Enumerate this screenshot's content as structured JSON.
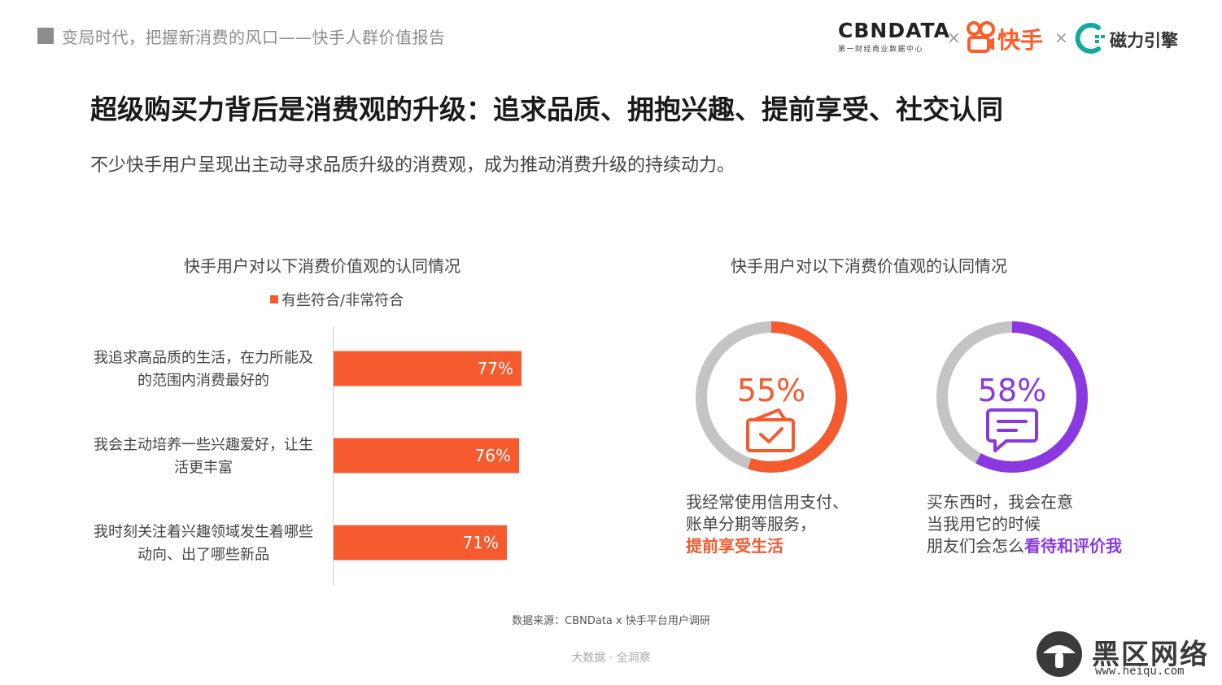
{
  "header": {
    "title": "变局时代，把握新消费的风口——快手人群价值报告",
    "logos": {
      "cbn_main": "CBNDATA",
      "cbn_sub": "第一财经商业数据中心",
      "x_sep": "×",
      "kuaishou": "快手",
      "cili": "磁力引擎"
    }
  },
  "main_title": "超级购买力背后是消费观的升级：追求品质、拥抱兴趣、提前享受、社交认同",
  "subtitle": "不少快手用户呈现出主动寻求品质升级的消费观，成为推动消费升级的持续动力。",
  "chart_data": [
    {
      "type": "bar",
      "orientation": "horizontal",
      "title": "快手用户对以下消费价值观的认同情况",
      "legend": [
        "有些符合/非常符合"
      ],
      "legend_position": "top",
      "xlim": [
        0,
        100
      ],
      "grid": false,
      "categories": [
        [
          "我追求高品质的生活，在力所能及",
          "的范围内消费最好的"
        ],
        [
          "我会主动培养一些兴趣爱好，让生",
          "活更丰富"
        ],
        [
          "我时刻关注着兴趣领域发生着哪些",
          "动向、出了哪些新品"
        ]
      ],
      "series": [
        {
          "name": "有些符合/非常符合",
          "values": [
            77,
            76,
            71
          ],
          "labels": [
            "77%",
            "76%",
            "71%"
          ],
          "color": "#f55b2f"
        }
      ]
    },
    {
      "type": "pie",
      "variant": "donut",
      "title": "快手用户对以下消费价值观的认同情况",
      "items": [
        {
          "value": 55,
          "label": "55%",
          "color": "#f55b2f",
          "icon": "credit-card-check-icon",
          "caption": [
            "我经常使用信用支付、",
            "账单分期等服务，"
          ],
          "highlight": "提前享受生活"
        },
        {
          "value": 58,
          "label": "58%",
          "color": "#8a38e0",
          "icon": "chat-bubble-icon",
          "caption": [
            "买东西时，我会在意",
            "当我用它的时候",
            "朋友们会怎么"
          ],
          "highlight": "看待和评价我"
        }
      ],
      "track_color": "#c4c4c4"
    }
  ],
  "source": "数据来源：CBNData x 快手平台用户调研",
  "footer": "大数据 · 全洞察",
  "watermark": {
    "text": "黑区网络",
    "url": "www.heiqu.com"
  }
}
